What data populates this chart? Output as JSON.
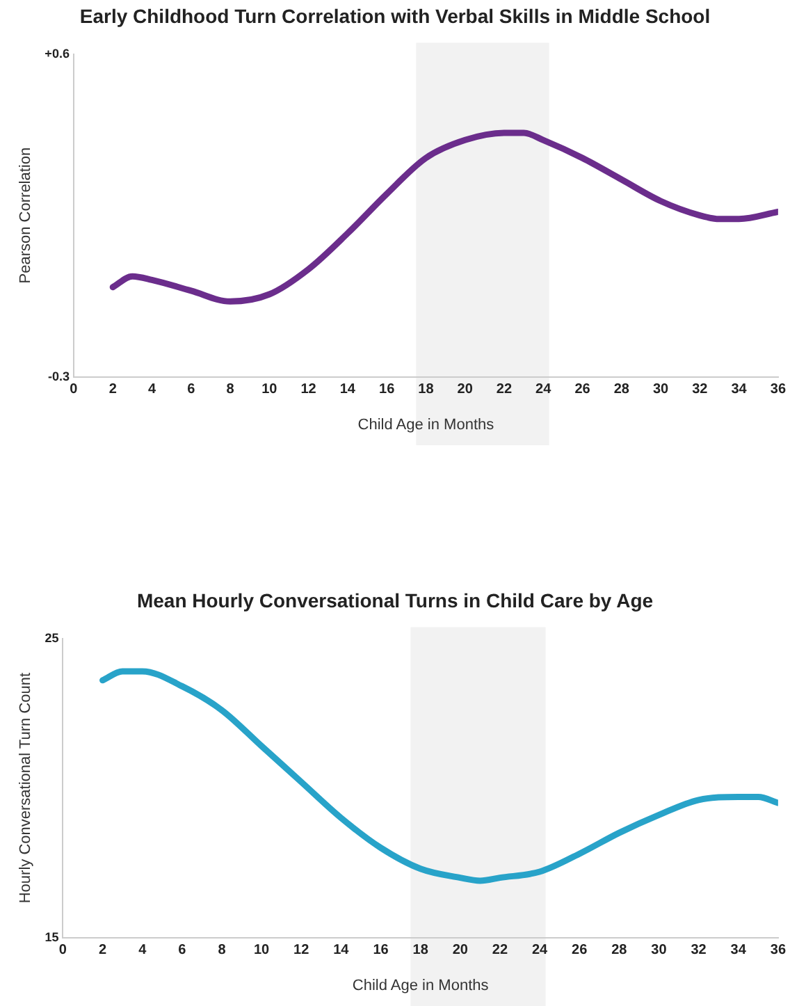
{
  "chart_data": [
    {
      "type": "line",
      "title": "Early Childhood Turn Correlation with Verbal Skills in Middle School",
      "xlabel": "Child Age in Months",
      "ylabel": "Pearson Correlation",
      "x": [
        2,
        3,
        4,
        6,
        8,
        10,
        12,
        14,
        16,
        18,
        20,
        22,
        23,
        24,
        26,
        28,
        30,
        32,
        33,
        34,
        36
      ],
      "series": [
        {
          "color": "#6b2d8c",
          "values": [
            -0.05,
            -0.02,
            -0.03,
            -0.06,
            -0.09,
            -0.07,
            0.0,
            0.1,
            0.21,
            0.31,
            0.36,
            0.38,
            0.38,
            0.36,
            0.31,
            0.25,
            0.19,
            0.15,
            0.14,
            0.14,
            0.16
          ]
        }
      ],
      "xlim": [
        0,
        36
      ],
      "xticks": [
        0,
        2,
        4,
        6,
        8,
        10,
        12,
        14,
        16,
        18,
        20,
        22,
        24,
        26,
        28,
        30,
        32,
        34,
        36
      ],
      "ylim": [
        -0.3,
        0.6
      ],
      "yticks": [
        {
          "value": -0.3,
          "label": "-0.3"
        },
        {
          "value": 0.6,
          "label": "+0.6"
        }
      ],
      "bands": [
        {
          "axis": "x",
          "from": 17.5,
          "to": 24.3,
          "color": "#f2f2f2"
        }
      ],
      "grid": false,
      "legend": false,
      "marker": "none",
      "line_style": "solid"
    },
    {
      "type": "line",
      "title": "Mean Hourly Conversational Turns in Child Care by Age",
      "xlabel": "Child Age in Months",
      "ylabel": "Hourly Conversational Turn Count",
      "x": [
        2,
        3,
        4,
        6,
        8,
        10,
        12,
        14,
        16,
        18,
        20,
        21,
        22,
        24,
        26,
        28,
        30,
        32,
        34,
        35,
        36
      ],
      "series": [
        {
          "color": "#28a3c9",
          "values": [
            23.6,
            23.9,
            23.9,
            23.4,
            22.6,
            21.4,
            20.2,
            19.0,
            18.0,
            17.3,
            17.0,
            16.9,
            17.0,
            17.2,
            17.8,
            18.5,
            19.1,
            19.6,
            19.7,
            19.7,
            19.5
          ]
        }
      ],
      "xlim": [
        0,
        36
      ],
      "xticks": [
        0,
        2,
        4,
        6,
        8,
        10,
        12,
        14,
        16,
        18,
        20,
        22,
        24,
        26,
        28,
        30,
        32,
        34,
        36
      ],
      "ylim": [
        15,
        25
      ],
      "yticks": [
        15,
        25
      ],
      "bands": [
        {
          "axis": "x",
          "from": 17.5,
          "to": 24.3,
          "color": "#f2f2f2"
        }
      ],
      "grid": false,
      "legend": false,
      "marker": "none",
      "line_style": "solid"
    }
  ]
}
